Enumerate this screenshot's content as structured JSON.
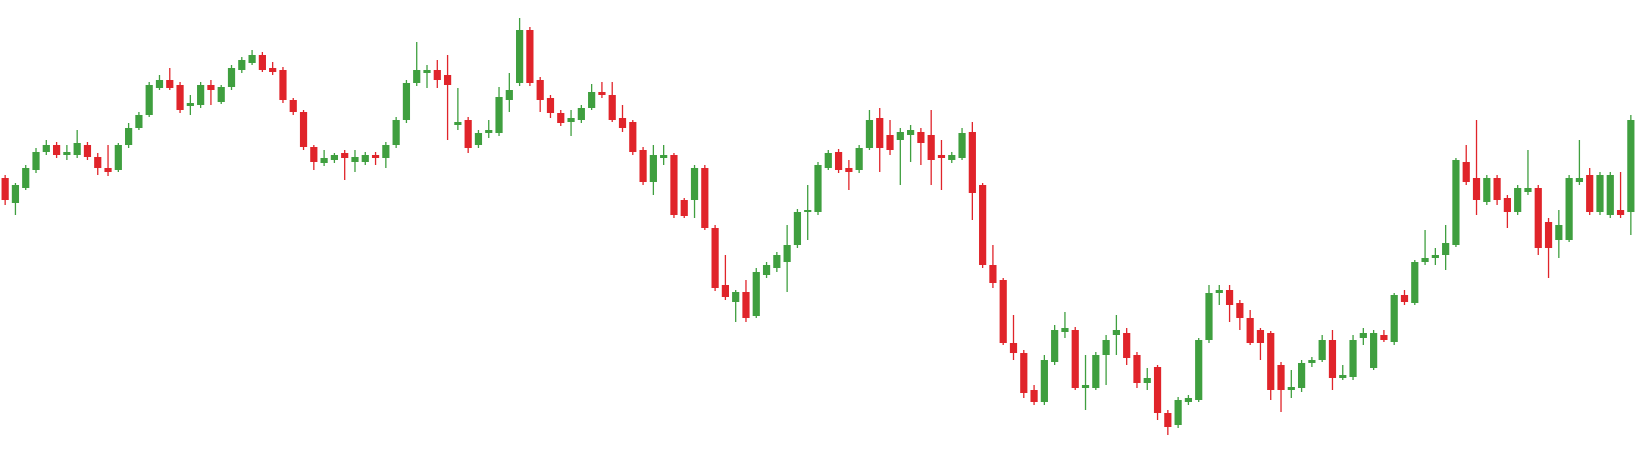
{
  "chart_data": {
    "type": "candlestick",
    "up_color": "#3f9f3f",
    "down_color": "#e0242a",
    "ylim": [
      0,
      463
    ],
    "open": [
      285,
      260,
      275,
      293,
      311,
      318,
      308,
      308,
      318,
      306,
      295,
      293,
      318,
      335,
      348,
      375,
      383,
      378,
      357,
      358,
      378,
      361,
      376,
      393,
      400,
      408,
      395,
      393,
      363,
      351,
      316,
      300,
      303,
      310,
      301,
      301,
      308,
      305,
      318,
      343,
      380,
      390,
      393,
      388,
      338,
      343,
      318,
      330,
      330,
      363,
      380,
      433,
      383,
      365,
      350,
      341,
      343,
      355,
      371,
      368,
      345,
      341,
      313,
      281,
      305,
      308,
      263,
      263,
      295,
      235,
      178,
      161,
      171,
      147,
      188,
      195,
      201,
      218,
      251,
      251,
      295,
      311,
      295,
      293,
      315,
      345,
      328,
      323,
      328,
      331,
      328,
      308,
      303,
      305,
      331,
      278,
      198,
      183,
      120,
      110,
      73,
      61,
      101,
      131,
      133,
      75,
      75,
      108,
      128,
      130,
      108,
      80,
      96,
      50,
      38,
      61,
      63,
      123,
      170,
      173,
      160,
      145,
      133,
      130,
      98,
      73,
      75,
      100,
      103,
      123,
      85,
      86,
      125,
      95,
      128,
      121,
      168,
      160,
      201,
      205,
      208,
      218,
      301,
      285,
      261,
      285,
      265,
      251,
      271,
      275,
      241,
      223,
      223,
      281,
      288,
      251,
      248,
      253,
      251
    ],
    "high": [
      288,
      280,
      298,
      315,
      323,
      321,
      318,
      333,
      321,
      310,
      318,
      320,
      340,
      351,
      381,
      388,
      395,
      381,
      368,
      381,
      383,
      378,
      398,
      406,
      413,
      411,
      401,
      396,
      365,
      353,
      318,
      313,
      310,
      313,
      313,
      311,
      311,
      321,
      346,
      383,
      421,
      398,
      403,
      408,
      375,
      346,
      333,
      343,
      376,
      390,
      445,
      436,
      386,
      368,
      353,
      353,
      358,
      379,
      381,
      381,
      358,
      343,
      316,
      318,
      318,
      310,
      265,
      298,
      298,
      238,
      208,
      173,
      183,
      195,
      201,
      211,
      238,
      254,
      278,
      301,
      313,
      314,
      303,
      318,
      353,
      355,
      343,
      335,
      338,
      335,
      353,
      323,
      311,
      335,
      341,
      280,
      218,
      185,
      148,
      113,
      78,
      108,
      138,
      151,
      136,
      108,
      111,
      128,
      148,
      135,
      111,
      95,
      98,
      53,
      66,
      68,
      125,
      178,
      178,
      178,
      163,
      153,
      135,
      132,
      101,
      93,
      103,
      106,
      128,
      133,
      98,
      128,
      135,
      133,
      133,
      170,
      173,
      203,
      233,
      215,
      238,
      305,
      318,
      343,
      288,
      288,
      268,
      278,
      313,
      278,
      245,
      253,
      288,
      323,
      295,
      291,
      291,
      291,
      348
    ],
    "low": [
      258,
      248,
      273,
      290,
      308,
      305,
      303,
      305,
      303,
      288,
      287,
      291,
      315,
      333,
      346,
      373,
      373,
      350,
      348,
      355,
      358,
      359,
      373,
      390,
      398,
      391,
      388,
      360,
      348,
      313,
      293,
      297,
      300,
      283,
      291,
      298,
      298,
      295,
      315,
      340,
      377,
      375,
      375,
      323,
      333,
      310,
      315,
      325,
      327,
      351,
      377,
      377,
      351,
      345,
      337,
      327,
      340,
      353,
      365,
      341,
      331,
      308,
      278,
      268,
      298,
      245,
      245,
      245,
      233,
      172,
      163,
      141,
      141,
      145,
      185,
      191,
      171,
      215,
      223,
      248,
      293,
      290,
      273,
      290,
      313,
      291,
      308,
      278,
      301,
      298,
      278,
      273,
      300,
      303,
      243,
      195,
      175,
      118,
      103,
      65,
      58,
      58,
      98,
      125,
      73,
      53,
      73,
      78,
      108,
      98,
      75,
      73,
      43,
      28,
      35,
      58,
      61,
      120,
      158,
      141,
      133,
      118,
      103,
      63,
      51,
      65,
      71,
      96,
      101,
      73,
      83,
      83,
      118,
      93,
      121,
      118,
      158,
      158,
      198,
      198,
      193,
      216,
      278,
      248,
      258,
      258,
      235,
      248,
      268,
      208,
      185,
      205,
      221,
      278,
      248,
      248,
      245,
      245,
      228
    ],
    "close": [
      263,
      278,
      295,
      311,
      318,
      308,
      311,
      320,
      306,
      295,
      291,
      318,
      335,
      348,
      378,
      383,
      375,
      353,
      360,
      378,
      373,
      376,
      395,
      403,
      408,
      393,
      391,
      363,
      351,
      316,
      301,
      305,
      308,
      305,
      306,
      308,
      305,
      318,
      343,
      380,
      393,
      393,
      383,
      378,
      341,
      315,
      330,
      333,
      366,
      373,
      433,
      380,
      363,
      350,
      340,
      345,
      355,
      371,
      368,
      343,
      335,
      311,
      281,
      308,
      308,
      248,
      247,
      295,
      235,
      175,
      166,
      171,
      145,
      191,
      198,
      208,
      218,
      251,
      253,
      298,
      310,
      293,
      291,
      315,
      343,
      315,
      313,
      331,
      333,
      320,
      303,
      305,
      308,
      330,
      270,
      198,
      180,
      120,
      110,
      70,
      61,
      103,
      133,
      135,
      75,
      78,
      108,
      123,
      133,
      105,
      80,
      85,
      50,
      36,
      63,
      65,
      123,
      170,
      173,
      158,
      145,
      120,
      120,
      73,
      73,
      76,
      100,
      103,
      123,
      85,
      88,
      123,
      130,
      130,
      123,
      168,
      161,
      201,
      205,
      208,
      220,
      303,
      281,
      263,
      285,
      263,
      251,
      275,
      275,
      215,
      215,
      238,
      285,
      285,
      251,
      288,
      288,
      248,
      343
    ]
  }
}
